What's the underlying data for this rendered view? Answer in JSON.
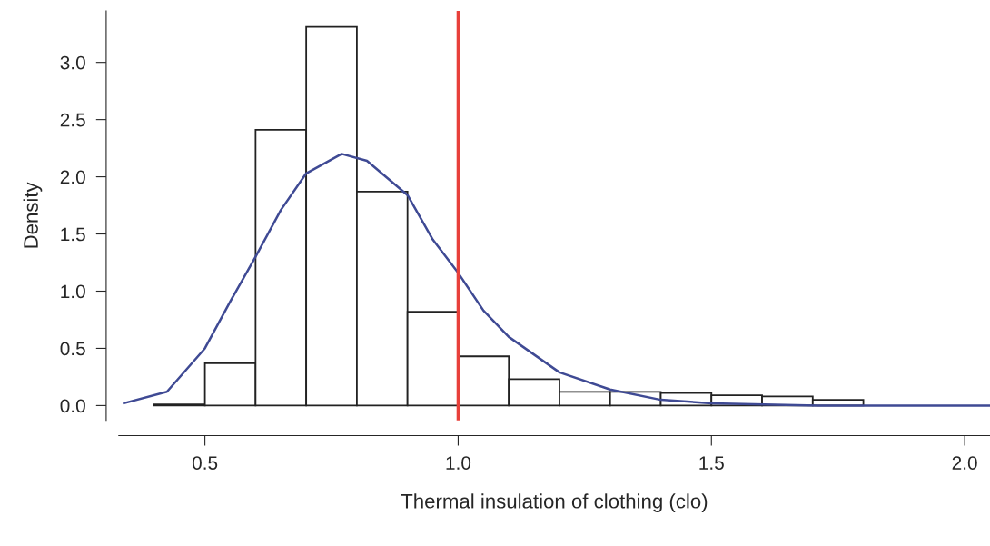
{
  "chart_data": {
    "type": "histogram",
    "xlabel": "Thermal insulation of clothing (clo)",
    "ylabel": "Density",
    "bins": [
      0.4,
      0.5,
      0.6,
      0.7,
      0.8,
      0.9,
      1.0,
      1.1,
      1.2,
      1.3,
      1.4,
      1.5,
      1.6,
      1.7,
      1.8
    ],
    "values": [
      0.01,
      0.37,
      2.41,
      3.31,
      1.87,
      0.82,
      0.43,
      0.23,
      0.12,
      0.12,
      0.11,
      0.09,
      0.08,
      0.05
    ],
    "color": "#ffffff",
    "series": [
      {
        "type": "line",
        "color": "#3f4a94",
        "x": [
          0.34,
          0.425,
          0.5,
          0.55,
          0.6,
          0.65,
          0.7,
          0.77,
          0.82,
          0.9,
          0.95,
          1.0,
          1.05,
          1.1,
          1.2,
          1.3,
          1.4,
          1.5,
          1.71,
          2.05
        ],
        "values": [
          0.02,
          0.12,
          0.5,
          0.91,
          1.3,
          1.71,
          2.03,
          2.2,
          2.14,
          1.84,
          1.45,
          1.16,
          0.83,
          0.6,
          0.29,
          0.14,
          0.05,
          0.02,
          0.0,
          0.0
        ]
      }
    ],
    "ref_lines": [
      {
        "axis": "x",
        "value": 1.0,
        "color": "#e8403a"
      }
    ],
    "xlim": [
      0.33,
      2.05
    ],
    "ylim": [
      -0.13,
      3.45
    ],
    "xticks": [
      {
        "value": 0.5,
        "label": "0.5"
      },
      {
        "value": 1.0,
        "label": "1.0"
      },
      {
        "value": 1.5,
        "label": "1.5"
      },
      {
        "value": 2.0,
        "label": "2.0"
      }
    ],
    "yticks": [
      {
        "value": 0.0,
        "label": "0.0"
      },
      {
        "value": 0.5,
        "label": "0.5"
      },
      {
        "value": 1.0,
        "label": "1.0"
      },
      {
        "value": 1.5,
        "label": "1.5"
      },
      {
        "value": 2.0,
        "label": "2.0"
      },
      {
        "value": 2.5,
        "label": "2.5"
      },
      {
        "value": 3.0,
        "label": "3.0"
      }
    ],
    "grid": false
  }
}
